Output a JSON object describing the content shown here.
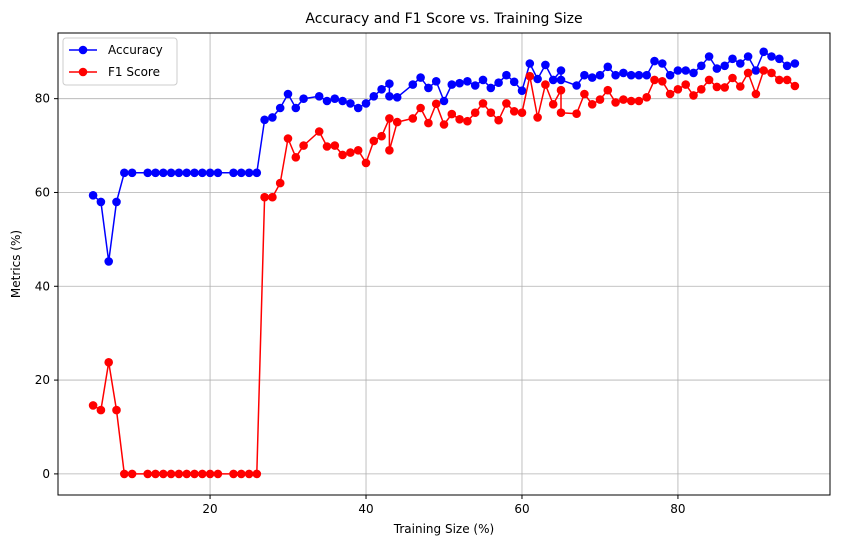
{
  "chart_data": {
    "type": "line",
    "title": "Accuracy and F1 Score vs. Training Size",
    "xlabel": "Training Size (%)",
    "ylabel": "Metrics (%)",
    "xlim": [
      0.5,
      99.5
    ],
    "ylim": [
      -4.5,
      94
    ],
    "xticks": [
      20,
      40,
      60,
      80
    ],
    "yticks": [
      0,
      20,
      40,
      60,
      80
    ],
    "grid": true,
    "legend_position": "top-left",
    "x": [
      5,
      6,
      7,
      8,
      9,
      10,
      12,
      13,
      14,
      15,
      16,
      17,
      18,
      19,
      20,
      21,
      23,
      24,
      25,
      26,
      27,
      28,
      29,
      30,
      31,
      32,
      34,
      35,
      36,
      37,
      38,
      39,
      40,
      41,
      42,
      43,
      43,
      44,
      46,
      47,
      48,
      49,
      50,
      51,
      52,
      53,
      54,
      55,
      56,
      57,
      58,
      59,
      60,
      61,
      62,
      63,
      64,
      65,
      65,
      67,
      68,
      69,
      70,
      71,
      72,
      73,
      74,
      75,
      76,
      77,
      78,
      79,
      80,
      81,
      82,
      83,
      84,
      85,
      86,
      87,
      88,
      89,
      90,
      91,
      92,
      93,
      94,
      95
    ],
    "series": [
      {
        "name": "Accuracy",
        "color": "#0000ff",
        "values": [
          59.4,
          58,
          45.3,
          58,
          64.2,
          64.2,
          64.2,
          64.2,
          64.2,
          64.2,
          64.2,
          64.2,
          64.2,
          64.2,
          64.2,
          64.2,
          64.2,
          64.2,
          64.2,
          64.2,
          75.5,
          76,
          78,
          81,
          78,
          80,
          80.5,
          79.5,
          80,
          79.5,
          79,
          78,
          79,
          80.5,
          82,
          83.2,
          80.5,
          80.3,
          83,
          84.5,
          82.3,
          83.7,
          79.5,
          83,
          83.3,
          83.7,
          82.8,
          84,
          82.3,
          83.4,
          85,
          83.6,
          81.7,
          87.5,
          84.2,
          87.2,
          84,
          86,
          84,
          82.8,
          85,
          84.5,
          85,
          86.8,
          85,
          85.5,
          85,
          85,
          85,
          88,
          87.5,
          85,
          86,
          86,
          85.5,
          87,
          89,
          86.4,
          87,
          88.5,
          87.5,
          89,
          86,
          90,
          89,
          88.5,
          87,
          87.5
        ]
      },
      {
        "name": "F1 Score",
        "color": "#ff0000",
        "values": [
          14.6,
          13.6,
          23.8,
          13.6,
          0,
          0,
          0,
          0,
          0,
          0,
          0,
          0,
          0,
          0,
          0,
          0,
          0,
          0,
          0,
          0,
          59,
          59,
          62,
          71.5,
          67.5,
          70,
          73,
          69.8,
          70,
          68,
          68.5,
          69,
          66.3,
          71,
          72,
          75.8,
          69,
          75,
          75.8,
          78,
          74.8,
          78.9,
          74.5,
          76.7,
          75.6,
          75.2,
          77,
          79,
          77,
          75.4,
          79,
          77.3,
          77,
          84.8,
          76,
          83,
          78.8,
          81.8,
          77,
          76.8,
          81,
          78.8,
          79.8,
          81.8,
          79.2,
          79.8,
          79.5,
          79.5,
          80.3,
          84,
          83.7,
          81,
          82,
          83,
          80.7,
          82,
          84,
          82.5,
          82.4,
          84.4,
          82.6,
          85.5,
          81,
          86,
          85.5,
          84,
          84,
          82.7
        ]
      }
    ]
  }
}
